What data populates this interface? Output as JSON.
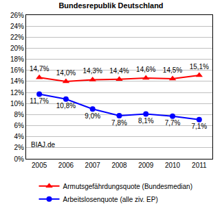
{
  "chart_data": {
    "type": "line",
    "title": "Bundesrepublik Deutschland",
    "categories": [
      "2005",
      "2006",
      "2007",
      "2008",
      "2009",
      "2010",
      "2011"
    ],
    "series": [
      {
        "name": "Armutsgefährdungsquote (Bundesmedian)",
        "color": "#ff0000",
        "marker": "triangle-up",
        "line_style": "solid",
        "values": [
          14.7,
          14.0,
          14.3,
          14.4,
          14.6,
          14.5,
          15.1
        ],
        "value_labels": [
          "14,7%",
          "14,0%",
          "14,3%",
          "14,4%",
          "14,6%",
          "14,5%",
          "15,1%"
        ]
      },
      {
        "name": "Arbeitslosenquote (alle ziv. EP)",
        "color": "#0000ff",
        "marker": "circle",
        "line_style": "solid",
        "values": [
          11.7,
          10.8,
          9.0,
          7.8,
          8.1,
          7.7,
          7.1
        ],
        "value_labels": [
          "11,7%",
          "10,8%",
          "9,0%",
          "7,8%",
          "8,1%",
          "7,7%",
          "7,1%"
        ]
      }
    ],
    "ylim": [
      0,
      26
    ],
    "yticks": [
      {
        "value": 0,
        "label": "0%"
      },
      {
        "value": 2,
        "label": "2%"
      },
      {
        "value": 4,
        "label": "4%"
      },
      {
        "value": 6,
        "label": "6%"
      },
      {
        "value": 8,
        "label": "8%"
      },
      {
        "value": 10,
        "label": "10%"
      },
      {
        "value": 12,
        "label": "12%"
      },
      {
        "value": 14,
        "label": "14%"
      },
      {
        "value": 16,
        "label": "16%"
      },
      {
        "value": 18,
        "label": "18%"
      },
      {
        "value": 20,
        "label": "20%"
      },
      {
        "value": 22,
        "label": "22%"
      },
      {
        "value": 24,
        "label": "24%"
      },
      {
        "value": 26,
        "label": "26%"
      }
    ],
    "grid": true,
    "legend": "bottom",
    "data_labels": true,
    "annotations": [
      {
        "text": "BIAJ.de"
      }
    ]
  }
}
